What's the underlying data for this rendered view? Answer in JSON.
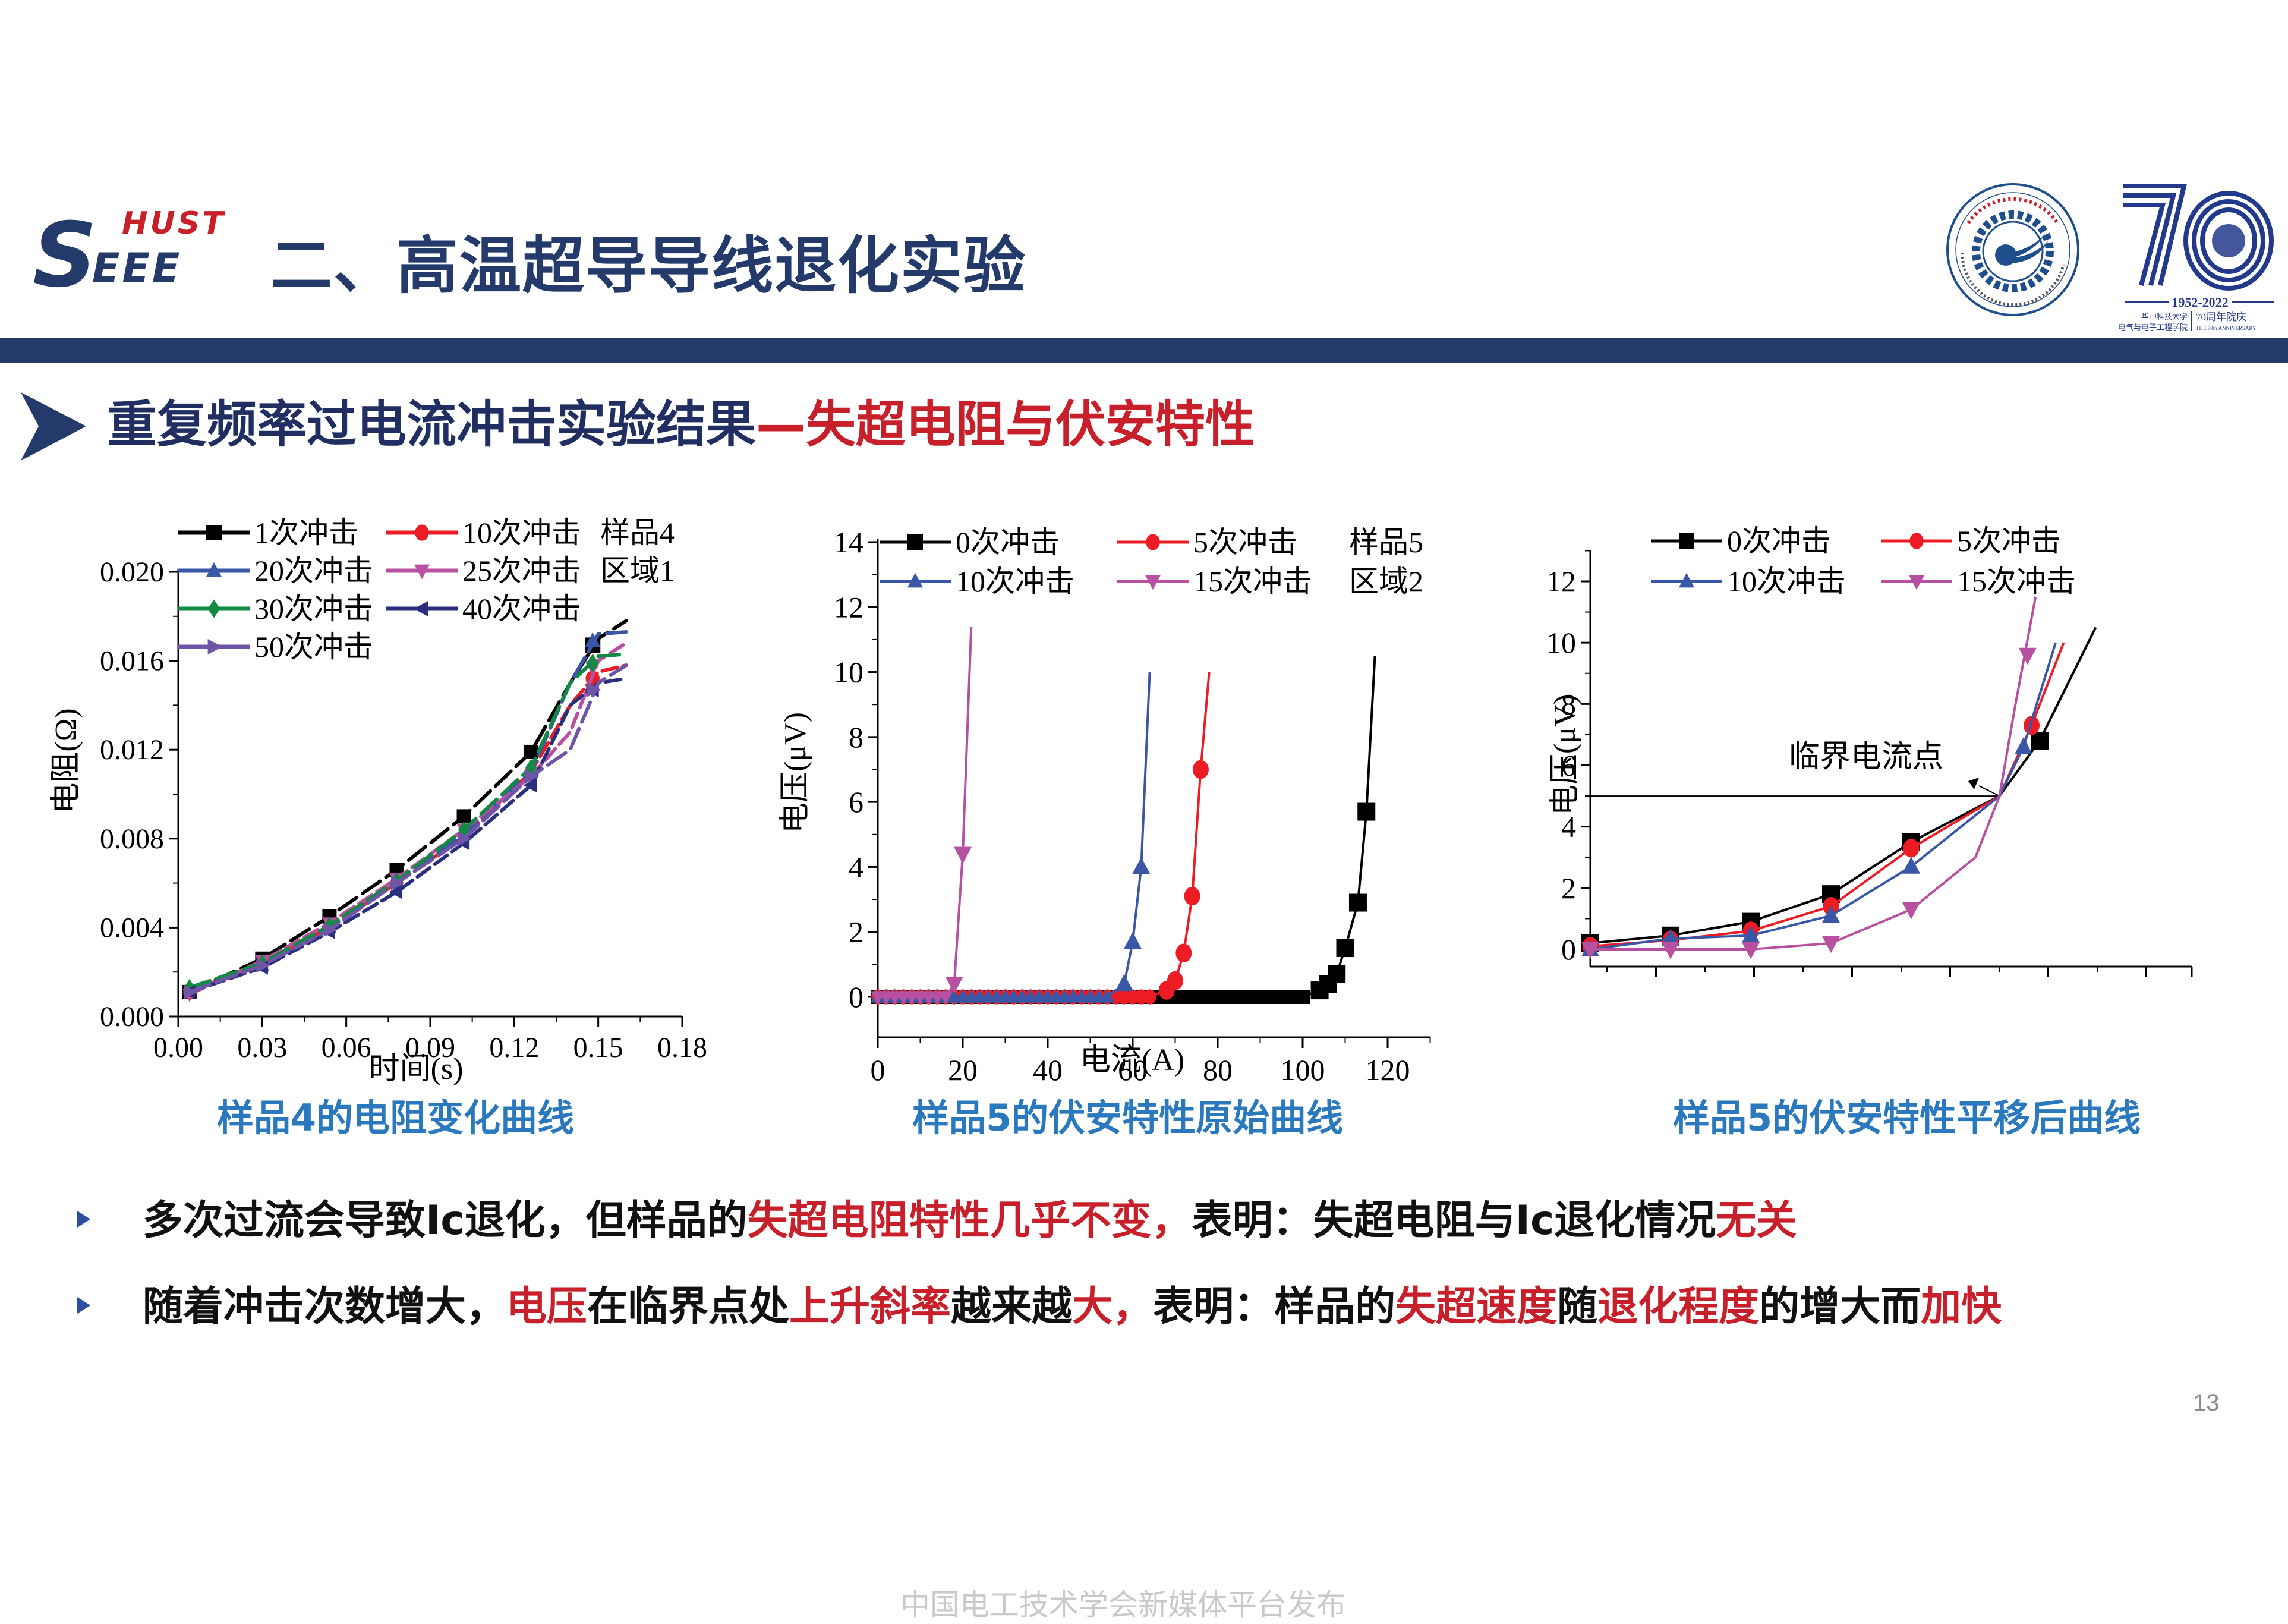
{
  "header": {
    "logo": {
      "big_letter": "S",
      "small_letters": "EEE",
      "hust": "HUST"
    },
    "title": "二、高温超导导线退化实验",
    "emblem": {
      "ring_text_cn": "华中科技大学电气与电子工程学院",
      "ring_text_en": "School of Electrical and Electronic Engineering",
      "center_year": "1952"
    },
    "anniversary": {
      "big": "70",
      "years": "1952-2022",
      "school_cn_1": "华中科技大学",
      "school_cn_2": "电气与电子工程学院",
      "label_cn": "70周年院庆",
      "label_en": "THE 70th ANNIVERSARY"
    },
    "bar_color": "#233a6b"
  },
  "subtitle": {
    "part1": "重复频率过电流冲击实验结果",
    "dash": "—",
    "part2": "失超电阻与伏安特性"
  },
  "captions": [
    "样品4的电阻变化曲线",
    "样品5的伏安特性原始曲线",
    "样品5的伏安特性平移后曲线"
  ],
  "bullets": [
    {
      "segments": [
        {
          "text": "多次过流会导致Ic退化，但样品的",
          "red": false
        },
        {
          "text": "失超电阻特性几乎不变，",
          "red": true
        },
        {
          "text": "表明：失超电阻与Ic退化情况",
          "red": false
        },
        {
          "text": "无关",
          "red": true
        }
      ]
    },
    {
      "segments": [
        {
          "text": "随着冲击次数增大，",
          "red": false
        },
        {
          "text": "电压",
          "red": true
        },
        {
          "text": "在临界点处",
          "red": false
        },
        {
          "text": "上升斜率",
          "red": true
        },
        {
          "text": "越来越",
          "red": false
        },
        {
          "text": "大，",
          "red": true
        },
        {
          "text": "表明：样品的",
          "red": false
        },
        {
          "text": "失超速度",
          "red": true
        },
        {
          "text": "随",
          "red": false
        },
        {
          "text": "退化程度",
          "red": true
        },
        {
          "text": "的增大而",
          "red": false
        },
        {
          "text": "加快",
          "red": true
        }
      ]
    }
  ],
  "page_number": "13",
  "footer": "中国电工技术学会新媒体平台发布",
  "chart_data": [
    {
      "type": "line",
      "title": "样品4的电阻变化曲线",
      "xlabel": "时间(s)",
      "ylabel": "电阻(Ω)",
      "xlim": [
        0,
        0.18
      ],
      "ylim": [
        0,
        0.02
      ],
      "xticks": [
        "0.00",
        "0.03",
        "0.06",
        "0.09",
        "0.12",
        "0.15",
        "0.18"
      ],
      "yticks": [
        "0.000",
        "0.004",
        "0.008",
        "0.012",
        "0.016",
        "0.020"
      ],
      "annotation": [
        "样品4",
        "区域1"
      ],
      "legend_position": "top-left",
      "x": [
        0.004,
        0.03,
        0.054,
        0.078,
        0.102,
        0.126,
        0.14,
        0.15,
        0.16
      ],
      "series": [
        {
          "name": "1次冲击",
          "color": "#000000",
          "marker": "square",
          "values": [
            0.0011,
            0.0026,
            0.0045,
            0.0066,
            0.009,
            0.0119,
            0.015,
            0.017,
            0.0178
          ]
        },
        {
          "name": "10次冲击",
          "color": "#ed1c24",
          "marker": "circle",
          "values": [
            0.0011,
            0.0024,
            0.004,
            0.006,
            0.0081,
            0.011,
            0.014,
            0.0155,
            0.0158
          ]
        },
        {
          "name": "20次冲击",
          "color": "#3a57a7",
          "marker": "triangle-up",
          "values": [
            0.0013,
            0.0023,
            0.004,
            0.006,
            0.0082,
            0.011,
            0.015,
            0.0172,
            0.0173
          ]
        },
        {
          "name": "25次冲击",
          "color": "#b750a0",
          "marker": "triangle-down",
          "values": [
            0.001,
            0.0025,
            0.0042,
            0.0062,
            0.0084,
            0.0108,
            0.0128,
            0.016,
            0.0168
          ]
        },
        {
          "name": "30次冲击",
          "color": "#138a43",
          "marker": "diamond",
          "values": [
            0.0013,
            0.0024,
            0.0041,
            0.0061,
            0.0084,
            0.0112,
            0.015,
            0.0162,
            0.0163
          ]
        },
        {
          "name": "40次冲击",
          "color": "#2a2f7d",
          "marker": "triangle-left",
          "values": [
            0.0011,
            0.0022,
            0.0038,
            0.0056,
            0.0078,
            0.0104,
            0.014,
            0.015,
            0.0152
          ]
        },
        {
          "name": "50次冲击",
          "color": "#6f55a8",
          "marker": "triangle-right",
          "values": [
            0.0011,
            0.0023,
            0.0039,
            0.006,
            0.008,
            0.0108,
            0.012,
            0.015,
            0.0158
          ]
        }
      ]
    },
    {
      "type": "line",
      "title": "样品5的伏安特性原始曲线",
      "xlabel": "电流(A)",
      "ylabel": "电压(μV)",
      "xlim": [
        0,
        130
      ],
      "ylim": [
        -1.2,
        14
      ],
      "xticks": [
        "0",
        "20",
        "40",
        "60",
        "80",
        "100",
        "120"
      ],
      "yticks": [
        "0",
        "2",
        "4",
        "6",
        "8",
        "10",
        "12",
        "14"
      ],
      "annotation": [
        "样品5",
        "区域2"
      ],
      "legend_position": "top",
      "series": [
        {
          "name": "0次冲击",
          "color": "#000000",
          "marker": "square",
          "points": [
            [
              0,
              0
            ],
            [
              100,
              0
            ],
            [
              104,
              0.2
            ],
            [
              106,
              0.4
            ],
            [
              108,
              0.7
            ],
            [
              110,
              1.5
            ],
            [
              113,
              2.9
            ],
            [
              115,
              5.7
            ],
            [
              117,
              10.5
            ]
          ]
        },
        {
          "name": "5次冲击",
          "color": "#ed1c24",
          "marker": "circle",
          "points": [
            [
              0,
              0
            ],
            [
              64,
              0
            ],
            [
              68,
              0.2
            ],
            [
              70,
              0.5
            ],
            [
              72,
              1.35
            ],
            [
              74,
              3.1
            ],
            [
              76,
              7.0
            ],
            [
              78,
              10.0
            ]
          ]
        },
        {
          "name": "10次冲击",
          "color": "#3a57a7",
          "marker": "triangle-up",
          "points": [
            [
              0,
              0
            ],
            [
              54,
              0
            ],
            [
              58,
              0.4
            ],
            [
              60,
              1.7
            ],
            [
              62,
              4.0
            ],
            [
              64,
              10.0
            ]
          ]
        },
        {
          "name": "15次冲击",
          "color": "#b750a0",
          "marker": "triangle-down",
          "points": [
            [
              0,
              0
            ],
            [
              16,
              0
            ],
            [
              18,
              0.4
            ],
            [
              20,
              4.4
            ],
            [
              22,
              11.4
            ]
          ]
        }
      ]
    },
    {
      "type": "line",
      "title": "样品5的伏安特性平移后曲线",
      "xlabel": "",
      "ylabel": "电压(μV)",
      "ylim": [
        -0.6,
        13
      ],
      "yticks": [
        "0",
        "2",
        "4",
        "6",
        "8",
        "10",
        "12"
      ],
      "xticks": [],
      "annotation": "临界电流点",
      "critical_voltage_line": 5,
      "legend_position": "top",
      "series": [
        {
          "name": "0次冲击",
          "color": "#000000",
          "marker": "square",
          "points": [
            [
              0,
              0.2
            ],
            [
              1,
              0.45
            ],
            [
              2,
              0.9
            ],
            [
              3,
              1.8
            ],
            [
              4,
              3.5
            ],
            [
              5.1,
              5
            ],
            [
              5.6,
              6.8
            ],
            [
              6.3,
              10.5
            ]
          ]
        },
        {
          "name": "5次冲击",
          "color": "#ed1c24",
          "marker": "circle",
          "points": [
            [
              0,
              0.1
            ],
            [
              1,
              0.3
            ],
            [
              2,
              0.6
            ],
            [
              3,
              1.4
            ],
            [
              4,
              3.3
            ],
            [
              5.1,
              5
            ],
            [
              5.5,
              7.3
            ],
            [
              5.9,
              10.0
            ]
          ]
        },
        {
          "name": "10次冲击",
          "color": "#3a57a7",
          "marker": "triangle-up",
          "points": [
            [
              0,
              0
            ],
            [
              1,
              0.35
            ],
            [
              2,
              0.45
            ],
            [
              3,
              1.1
            ],
            [
              4,
              2.7
            ],
            [
              5.1,
              5
            ],
            [
              5.4,
              6.6
            ],
            [
              5.8,
              10.0
            ]
          ]
        },
        {
          "name": "15次冲击",
          "color": "#b750a0",
          "marker": "triangle-down",
          "points": [
            [
              0,
              0
            ],
            [
              1,
              0
            ],
            [
              2,
              0
            ],
            [
              3,
              0.2
            ],
            [
              4,
              1.3
            ],
            [
              4.8,
              3
            ],
            [
              5.1,
              5
            ],
            [
              5.3,
              8
            ],
            [
              5.55,
              11.5
            ]
          ]
        }
      ]
    }
  ]
}
